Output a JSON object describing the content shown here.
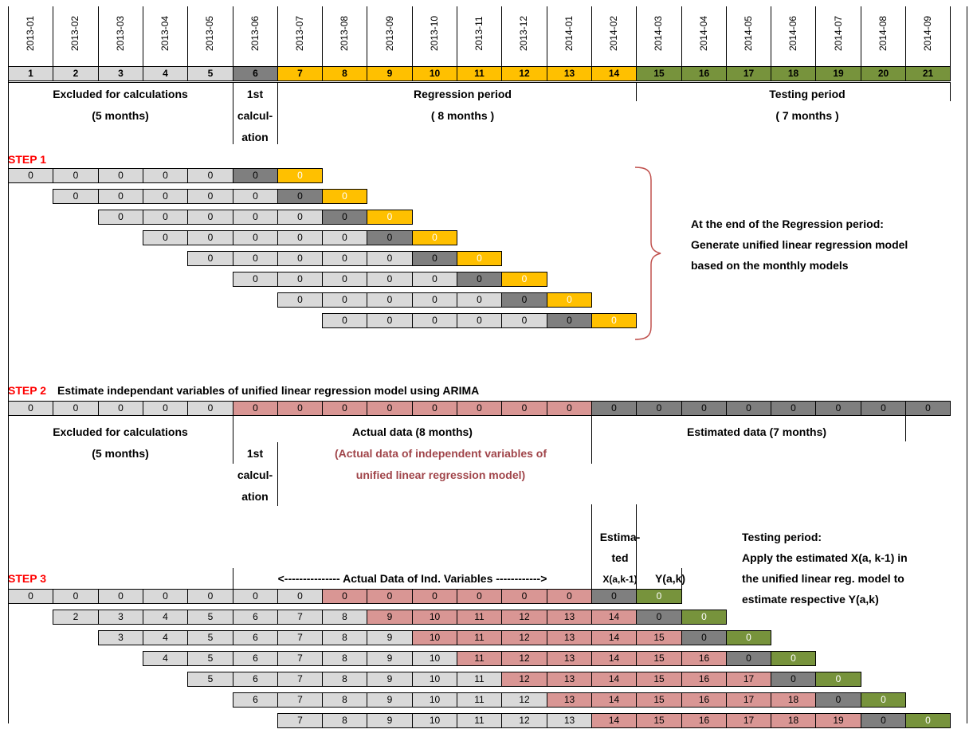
{
  "months": [
    "2013-01",
    "2013-02",
    "2013-03",
    "2013-04",
    "2013-05",
    "2013-06",
    "2013-07",
    "2013-08",
    "2013-09",
    "2013-10",
    "2013-11",
    "2013-12",
    "2014-01",
    "2014-02",
    "2014-03",
    "2014-04",
    "2014-05",
    "2014-06",
    "2014-07",
    "2014-08",
    "2014-09"
  ],
  "month_numbers": [
    "1",
    "2",
    "3",
    "4",
    "5",
    "6",
    "7",
    "8",
    "9",
    "10",
    "11",
    "12",
    "13",
    "14",
    "15",
    "16",
    "17",
    "18",
    "19",
    "20",
    "21"
  ],
  "colors": {
    "light_gray": "#d9d9d9",
    "dark_gray": "#7f7f7f",
    "orange": "#ffc000",
    "green": "#77933c",
    "pink": "#d99694",
    "red_label": "#ff0000",
    "brown_text": "#a0454a",
    "brace": "#c0504d"
  },
  "header_labels": {
    "excluded_line1": "Excluded for calculations",
    "excluded_line2": "(5 months)",
    "first_calc_1": "1st",
    "first_calc_2": "calcul-",
    "first_calc_3": "ation",
    "regression_line1": "Regression period",
    "regression_line2": "( 8 months )",
    "testing_line1": "Testing period",
    "testing_line2": "( 7 months )"
  },
  "step1": {
    "label": "STEP 1",
    "note_line1": "At the end of the Regression period:",
    "note_line2": "Generate unified linear regression model",
    "note_line3": "based on the monthly  models"
  },
  "step2": {
    "label": "STEP 2",
    "title": "Estimate independant variables of unified linear regression model using ARIMA",
    "excluded_line1": "Excluded for calculations",
    "excluded_line2": "(5 months)",
    "first_calc_1": "1st",
    "first_calc_2": "calcul-",
    "first_calc_3": "ation",
    "actual_label": "Actual data (8 months)",
    "actual_note_line1": "(Actual data of independent variables of",
    "actual_note_line2": "unified linear regression model)",
    "estimated_label": "Estimated data (7 months)"
  },
  "step3": {
    "label": "STEP 3",
    "actual_header": "<--------------- Actual Data of Ind. Variables ------------>",
    "estimated_1": "Estima-",
    "estimated_2": "ted",
    "x_label": "X(a,k-1)",
    "y_label": "Y(a,k)",
    "testing_1": "Testing period:",
    "testing_2": "Apply the estimated X(a, k-1) in",
    "testing_3": "the unified linear reg. model to",
    "testing_4": "estimate respective Y(a,k)"
  },
  "zero": "0"
}
